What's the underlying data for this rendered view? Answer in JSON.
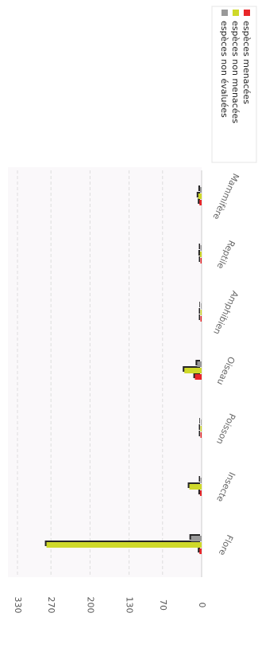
{
  "chart_data": {
    "type": "bar",
    "orientation": "horizontal-bars-rotated",
    "categories": [
      "Flore",
      "Insecte",
      "Poisson",
      "Oiseau",
      "Amphibien",
      "Reptile",
      "Mammifère"
    ],
    "series": [
      {
        "name": "espèces menacées",
        "color": "#e8262a",
        "values": [
          4,
          3,
          1,
          12,
          1,
          1,
          4
        ]
      },
      {
        "name": "espèces non menacées",
        "color": "#cfd92a",
        "values": [
          278,
          22,
          1,
          31,
          2,
          3,
          6
        ]
      },
      {
        "name": "espèces non évaluées",
        "color": "#999999",
        "values": [
          19,
          1,
          0,
          8,
          0,
          1,
          3
        ]
      }
    ],
    "y_ticks": [
      0,
      70,
      130,
      200,
      270,
      330
    ],
    "ylim": [
      0,
      330
    ],
    "grid": true,
    "legend_position": "top-right"
  }
}
